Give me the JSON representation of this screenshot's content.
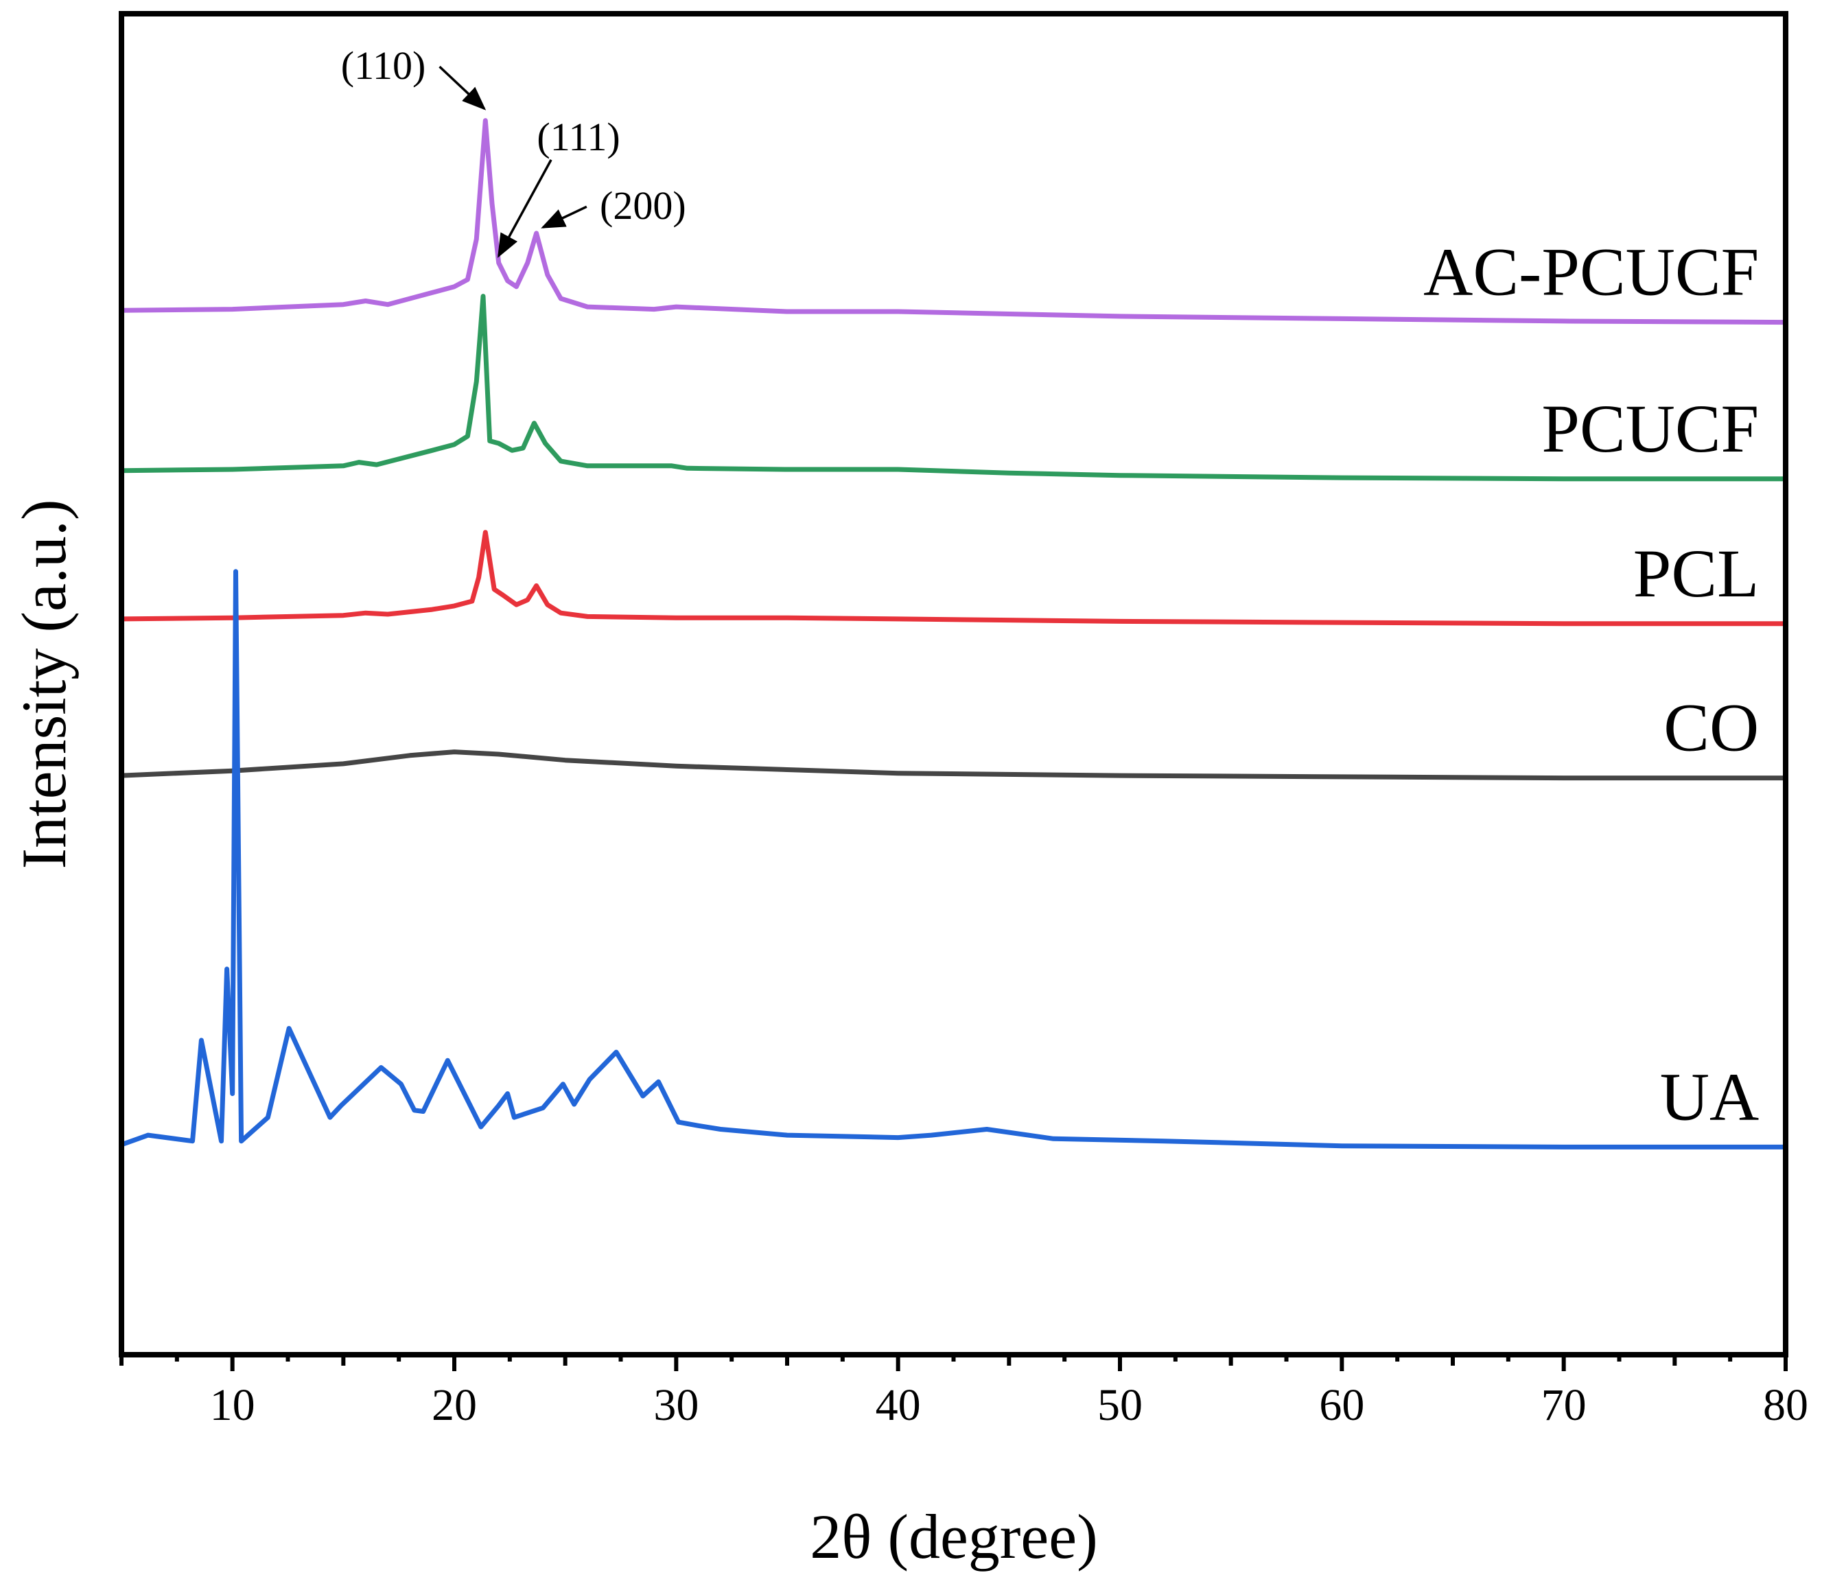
{
  "chart_data": {
    "type": "line",
    "title": "",
    "xlabel": "2θ (degree)",
    "ylabel": "Intensity (a.u.)",
    "xlim": [
      5,
      80
    ],
    "ylim": [
      -0.1,
      1.03
    ],
    "x_ticks": [
      10,
      20,
      30,
      40,
      50,
      60,
      70,
      80
    ],
    "y_ticks": [],
    "grid": false,
    "series": [
      {
        "name": "AC-PCUCF",
        "color": "#b36be0",
        "x": [
          5,
          10,
          15,
          16,
          17,
          19,
          20,
          20.6,
          21,
          21.4,
          21.7,
          22,
          22.4,
          22.8,
          23.3,
          23.7,
          24.2,
          24.8,
          26,
          29,
          30,
          35,
          40,
          45,
          50,
          60,
          70,
          80
        ],
        "y": [
          0.78,
          0.781,
          0.785,
          0.788,
          0.785,
          0.795,
          0.8,
          0.806,
          0.84,
          0.94,
          0.87,
          0.82,
          0.805,
          0.8,
          0.82,
          0.845,
          0.81,
          0.79,
          0.783,
          0.781,
          0.783,
          0.779,
          0.779,
          0.777,
          0.775,
          0.773,
          0.771,
          0.77
        ]
      },
      {
        "name": "PCUCF",
        "color": "#2e9b5e",
        "x": [
          5,
          10,
          15,
          15.7,
          16.5,
          19,
          20,
          20.6,
          21,
          21.3,
          21.6,
          22,
          22.6,
          23.1,
          23.6,
          24.1,
          24.8,
          26,
          29.8,
          30.5,
          35,
          40,
          45,
          50,
          60,
          70,
          80
        ],
        "y": [
          0.645,
          0.646,
          0.649,
          0.652,
          0.65,
          0.662,
          0.667,
          0.674,
          0.72,
          0.792,
          0.67,
          0.668,
          0.662,
          0.664,
          0.685,
          0.668,
          0.653,
          0.649,
          0.649,
          0.647,
          0.646,
          0.646,
          0.643,
          0.641,
          0.639,
          0.638,
          0.638
        ]
      },
      {
        "name": "PCL",
        "color": "#e8333b",
        "x": [
          5,
          10,
          15,
          16,
          17,
          19,
          20,
          20.8,
          21.1,
          21.4,
          21.8,
          22.2,
          22.8,
          23.3,
          23.7,
          24.2,
          24.8,
          26,
          30,
          35,
          40,
          45,
          50,
          60,
          70,
          80
        ],
        "y": [
          0.52,
          0.521,
          0.523,
          0.525,
          0.524,
          0.528,
          0.531,
          0.535,
          0.555,
          0.593,
          0.545,
          0.54,
          0.532,
          0.536,
          0.548,
          0.532,
          0.525,
          0.522,
          0.521,
          0.521,
          0.52,
          0.519,
          0.518,
          0.517,
          0.516,
          0.516
        ]
      },
      {
        "name": "CO",
        "color": "#454545",
        "x": [
          5,
          10,
          15,
          18,
          20,
          22,
          25,
          30,
          40,
          50,
          60,
          70,
          80
        ],
        "y": [
          0.388,
          0.392,
          0.398,
          0.405,
          0.408,
          0.406,
          0.401,
          0.396,
          0.39,
          0.388,
          0.387,
          0.386,
          0.386
        ],
        "note": "smooth amorphous hump"
      },
      {
        "name": "UA",
        "color": "#2266d8",
        "x": [
          5,
          6.2,
          8.2,
          8.6,
          9.5,
          9.75,
          10.0,
          10.15,
          10.4,
          11.6,
          12.55,
          14.4,
          14.9,
          16.7,
          17.6,
          18.2,
          18.6,
          19.7,
          21.2,
          22.0,
          22.4,
          22.7,
          24.0,
          24.9,
          25.4,
          26.1,
          27.3,
          28.5,
          29.2,
          30.1,
          31.0,
          32.0,
          35.0,
          40.0,
          41.5,
          44.0,
          47.0,
          52.0,
          60.0,
          70.0,
          80.0
        ],
        "y": [
          0.077,
          0.085,
          0.08,
          0.165,
          0.08,
          0.225,
          0.12,
          0.56,
          0.08,
          0.1,
          0.175,
          0.1,
          0.11,
          0.142,
          0.128,
          0.106,
          0.105,
          0.148,
          0.092,
          0.11,
          0.12,
          0.1,
          0.108,
          0.128,
          0.111,
          0.132,
          0.155,
          0.118,
          0.13,
          0.096,
          0.093,
          0.09,
          0.085,
          0.083,
          0.085,
          0.09,
          0.082,
          0.08,
          0.076,
          0.075,
          0.075
        ],
        "note": "many sharp crystalline peaks, strongest near 10.2"
      }
    ],
    "series_label_x": 78.8,
    "annotations": [
      {
        "text": "(110)",
        "text_x": 16.8,
        "text_y": 0.975,
        "arrow_to_x": 21.35,
        "arrow_to_y": 0.95
      },
      {
        "text": "(111)",
        "text_x": 25.6,
        "text_y": 0.915,
        "arrow_to_x": 22.0,
        "arrow_to_y": 0.826
      },
      {
        "text": "(200)",
        "text_x": 28.5,
        "text_y": 0.857,
        "arrow_to_x": 24.0,
        "arrow_to_y": 0.85
      }
    ]
  }
}
